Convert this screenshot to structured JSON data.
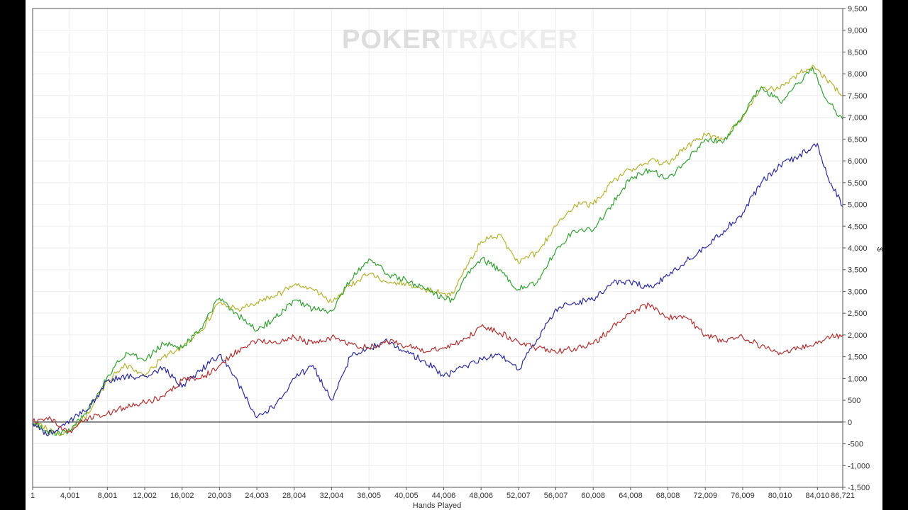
{
  "watermark": {
    "part1": "PO",
    "part2": "KER",
    "part3": "TRACKER"
  },
  "chart_data": {
    "type": "line",
    "title": "",
    "xlabel": "Hands Played",
    "ylabel": "",
    "ylabel_symbol": "$",
    "xlim": [
      1,
      86721
    ],
    "ylim": [
      -1500,
      9500
    ],
    "grid": true,
    "x_tick_values": [
      1,
      4001,
      8001,
      12002,
      16002,
      20003,
      24003,
      28004,
      32004,
      36005,
      40005,
      44006,
      48006,
      52007,
      56007,
      60008,
      64008,
      68008,
      72009,
      76009,
      80010,
      84010,
      86721
    ],
    "x_tick_labels": [
      "1",
      "4,001",
      "8,001",
      "12,002",
      "16,002",
      "20,003",
      "24,003",
      "28,004",
      "32,004",
      "36,005",
      "40,005",
      "44,006",
      "48,006",
      "52,007",
      "56,007",
      "60,008",
      "64,008",
      "68,008",
      "72,009",
      "76,009",
      "80,010",
      "84,010",
      "86,721"
    ],
    "y_tick_values": [
      -1500,
      -1000,
      -500,
      0,
      500,
      1000,
      1500,
      2000,
      2500,
      3000,
      3500,
      4000,
      4500,
      5000,
      5500,
      6000,
      6500,
      7000,
      7500,
      8000,
      8500,
      9000,
      9500
    ],
    "y_tick_labels": [
      "-1,500",
      "-1,000",
      "-500",
      "0",
      "500",
      "1,000",
      "1,500",
      "2,000",
      "2,500",
      "3,000",
      "3,500",
      "4,000",
      "4,500",
      "5,000",
      "5,500",
      "6,000",
      "6,500",
      "7,000",
      "7,500",
      "8,000",
      "8,500",
      "9,000",
      "9,500"
    ],
    "series": [
      {
        "color": "#b5b232",
        "x": [
          1,
          1500,
          3000,
          4001,
          6000,
          8001,
          10000,
          12002,
          14000,
          16002,
          18000,
          20003,
          22000,
          24003,
          26000,
          28004,
          30000,
          32004,
          34000,
          36005,
          38000,
          40005,
          42000,
          44006,
          45000,
          46500,
          48006,
          50000,
          52007,
          54000,
          56007,
          58000,
          60008,
          62000,
          64008,
          66000,
          68008,
          70000,
          72009,
          74000,
          76009,
          78000,
          80010,
          82000,
          83500,
          84010,
          85000,
          86721
        ],
        "y": [
          0,
          -150,
          -300,
          -200,
          200,
          950,
          1300,
          1050,
          1500,
          1700,
          2100,
          2750,
          2600,
          2750,
          2900,
          3150,
          3050,
          2750,
          3150,
          3400,
          3200,
          3200,
          3050,
          2950,
          2950,
          3600,
          4150,
          4300,
          3650,
          3900,
          4500,
          5000,
          5000,
          5500,
          5800,
          6000,
          5950,
          6300,
          6600,
          6500,
          7000,
          7700,
          7650,
          8000,
          8200,
          8100,
          7850,
          7500
        ]
      },
      {
        "color": "#32a032",
        "x": [
          1,
          1500,
          3000,
          4001,
          6000,
          8001,
          10000,
          12002,
          14000,
          16002,
          18000,
          20003,
          22000,
          24003,
          26000,
          28004,
          30000,
          32004,
          34000,
          36005,
          38000,
          40005,
          42000,
          44006,
          45000,
          46500,
          48006,
          50000,
          52007,
          54000,
          56007,
          58000,
          60008,
          62000,
          64008,
          66000,
          68008,
          70000,
          72009,
          74000,
          76009,
          78000,
          80010,
          82000,
          83500,
          84010,
          85000,
          86721
        ],
        "y": [
          0,
          -200,
          -300,
          -200,
          300,
          1050,
          1600,
          1400,
          1800,
          1700,
          2150,
          2850,
          2450,
          2100,
          2400,
          2800,
          2600,
          2550,
          3250,
          3750,
          3400,
          3250,
          3050,
          2850,
          2800,
          3400,
          3750,
          3500,
          3050,
          3200,
          3950,
          4400,
          4400,
          5000,
          5600,
          5800,
          5600,
          6000,
          6500,
          6450,
          7050,
          7700,
          7350,
          7800,
          8150,
          7900,
          7400,
          6950
        ]
      },
      {
        "color": "#2a2a9a",
        "x": [
          1,
          1500,
          3000,
          4001,
          6000,
          8001,
          10000,
          12002,
          14000,
          16002,
          18000,
          20003,
          22000,
          24003,
          26000,
          28004,
          30000,
          32004,
          34000,
          36005,
          38000,
          40005,
          42000,
          44006,
          46000,
          48006,
          50000,
          52007,
          54000,
          56007,
          58000,
          60008,
          62000,
          64008,
          66000,
          68008,
          70000,
          72009,
          74000,
          76009,
          78000,
          80010,
          82000,
          83500,
          84010,
          85000,
          86721
        ],
        "y": [
          0,
          -300,
          -100,
          50,
          300,
          950,
          1050,
          1050,
          1250,
          800,
          1200,
          1550,
          900,
          100,
          400,
          1000,
          1300,
          500,
          1500,
          1700,
          1850,
          1600,
          1400,
          1050,
          1250,
          1450,
          1550,
          1200,
          1900,
          2600,
          2750,
          2800,
          3200,
          3200,
          3100,
          3350,
          3700,
          4000,
          4400,
          4800,
          5500,
          5900,
          6100,
          6350,
          6400,
          5700,
          4950
        ]
      },
      {
        "color": "#b03030",
        "x": [
          1,
          1500,
          3000,
          4001,
          6000,
          8001,
          10000,
          12002,
          14000,
          16002,
          18000,
          20003,
          22000,
          24003,
          26000,
          28004,
          30000,
          32004,
          34000,
          36005,
          38000,
          40005,
          42000,
          44006,
          46000,
          48006,
          50000,
          52007,
          54000,
          56007,
          58000,
          60008,
          62000,
          64008,
          66000,
          67000,
          68008,
          70000,
          72009,
          74000,
          76009,
          78000,
          80010,
          82000,
          84010,
          85000,
          86721
        ],
        "y": [
          0,
          100,
          -100,
          -200,
          100,
          200,
          350,
          450,
          600,
          950,
          1000,
          1300,
          1650,
          1850,
          1850,
          1950,
          1800,
          1950,
          1800,
          1700,
          1850,
          1750,
          1600,
          1700,
          1850,
          2200,
          2050,
          1850,
          1700,
          1600,
          1700,
          1800,
          2150,
          2500,
          2700,
          2550,
          2400,
          2400,
          2000,
          1850,
          1950,
          1750,
          1600,
          1700,
          1800,
          1950,
          2000
        ]
      }
    ]
  }
}
